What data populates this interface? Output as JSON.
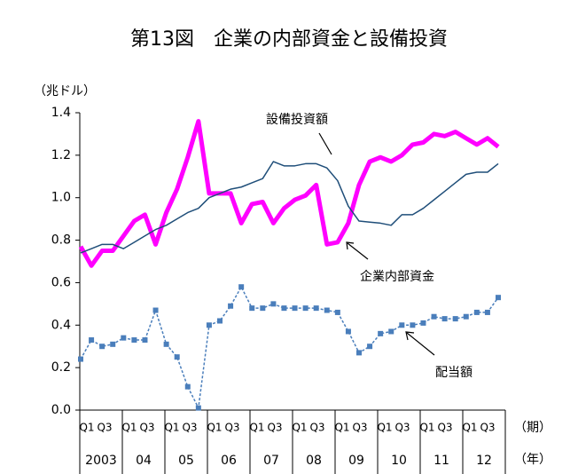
{
  "chart_data": {
    "type": "line",
    "title": "第13図　企業の内部資金と設備投資",
    "y_label": "（兆ドル）",
    "x_label": "（期）",
    "year_axis_label": "（年）",
    "categories": [
      "Q1",
      null,
      "Q3",
      null,
      "Q1",
      null,
      "Q3",
      null,
      "Q1",
      null,
      "Q3",
      null,
      "Q1",
      null,
      "Q3",
      null,
      "Q1",
      null,
      "Q3",
      null,
      "Q1",
      null,
      "Q3",
      null,
      "Q1",
      null,
      "Q3",
      null,
      "Q1",
      null,
      "Q3",
      null,
      "Q1",
      null,
      "Q3",
      null,
      "Q1",
      null,
      "Q3",
      null
    ],
    "years": [
      "2003",
      "04",
      "05",
      "06",
      "07",
      "08",
      "09",
      "10",
      "11",
      "12"
    ],
    "ylim": [
      0,
      1.4
    ],
    "yticks": [
      {
        "value": 0,
        "label": "0.0"
      },
      0.2,
      0.4,
      0.6,
      0.8,
      {
        "value": 1,
        "label": "1.0"
      },
      1.2,
      1.4
    ],
    "series": [
      {
        "name": "企業内部資金",
        "color": "#ff00ff",
        "width": 5,
        "markers": false,
        "values": [
          0.77,
          0.68,
          0.75,
          0.75,
          0.82,
          0.89,
          0.92,
          0.78,
          0.93,
          1.04,
          1.19,
          1.36,
          1.02,
          1.02,
          1.02,
          0.88,
          0.97,
          0.98,
          0.88,
          0.95,
          0.99,
          1.01,
          1.06,
          0.78,
          0.79,
          0.88,
          1.06,
          1.17,
          1.19,
          1.17,
          1.2,
          1.25,
          1.26,
          1.3,
          1.29,
          1.31,
          1.28,
          1.25,
          1.28,
          1.24
        ]
      },
      {
        "name": "設備投資額",
        "color": "#1f4e79",
        "width": 1.5,
        "markers": false,
        "values": [
          0.74,
          0.76,
          0.78,
          0.78,
          0.76,
          0.79,
          0.82,
          0.85,
          0.87,
          0.9,
          0.93,
          0.95,
          1.0,
          1.02,
          1.04,
          1.05,
          1.07,
          1.09,
          1.17,
          1.15,
          1.15,
          1.16,
          1.16,
          1.14,
          1.08,
          0.96,
          0.89,
          0.885,
          0.88,
          0.87,
          0.92,
          0.92,
          0.95,
          0.99,
          1.03,
          1.07,
          1.11,
          1.12,
          1.12,
          1.16
        ]
      },
      {
        "name": "配当額",
        "color": "#4a7ebb",
        "width": 1.5,
        "markers": true,
        "dash": true,
        "values": [
          0.24,
          0.33,
          0.3,
          0.31,
          0.34,
          0.33,
          0.33,
          0.47,
          0.31,
          0.25,
          0.11,
          0.01,
          0.4,
          0.42,
          0.49,
          0.58,
          0.48,
          0.48,
          0.5,
          0.48,
          0.48,
          0.48,
          0.48,
          0.47,
          0.46,
          0.37,
          0.27,
          0.3,
          0.36,
          0.37,
          0.4,
          0.4,
          0.41,
          0.44,
          0.43,
          0.43,
          0.44,
          0.46,
          0.46,
          0.53
        ]
      }
    ]
  }
}
